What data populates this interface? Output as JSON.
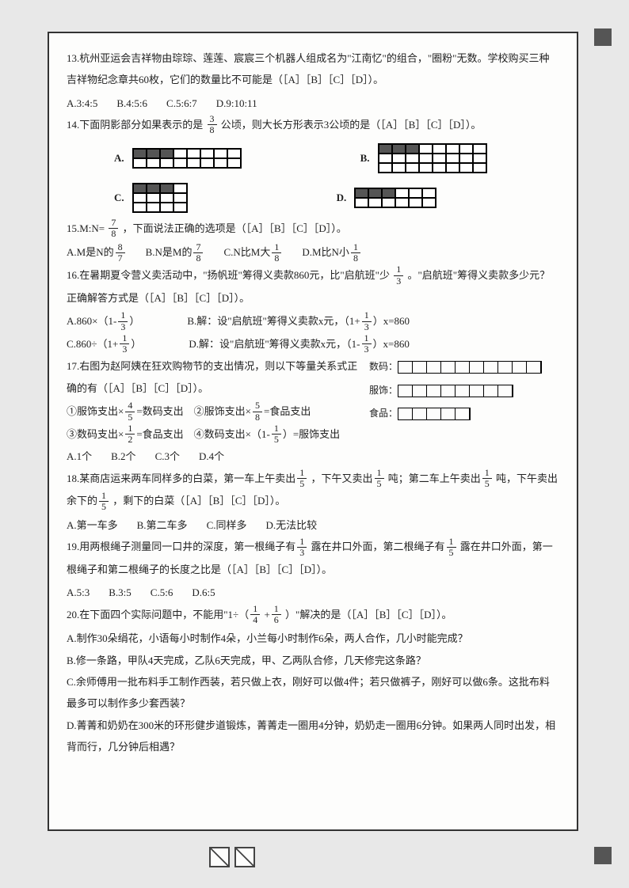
{
  "q13": {
    "text": "13.杭州亚运会吉祥物由琮琮、莲莲、宸宸三个机器人组成名为\"江南忆\"的组合，\"圈粉\"无数。学校购买三种吉祥物纪念章共60枚，它们的数量比不可能是（［A］［B］［C］［D］）。",
    "A": "A.3:4:5",
    "B": "B.4:5:6",
    "C": "C.5:6:7",
    "D": "D.9:10:11"
  },
  "q14": {
    "text_a": "14.下面阴影部分如果表示的是",
    "frac": {
      "n": "3",
      "d": "8"
    },
    "text_b": "公顷，则大长方形表示3公顷的是（［A］［B］［C］［D］）。",
    "grids": {
      "A": {
        "label": "A.",
        "rows": 2,
        "cols": 8,
        "fill": [
          [
            0,
            0
          ],
          [
            0,
            1
          ],
          [
            0,
            2
          ]
        ]
      },
      "B": {
        "label": "B.",
        "rows": 3,
        "cols": 8,
        "fill": [
          [
            0,
            0
          ],
          [
            0,
            1
          ],
          [
            0,
            2
          ]
        ]
      },
      "C": {
        "label": "C.",
        "rows": 3,
        "cols": 4,
        "fill": [
          [
            0,
            0
          ],
          [
            0,
            1
          ],
          [
            0,
            2
          ]
        ]
      },
      "D": {
        "label": "D.",
        "rows": 2,
        "cols": 6,
        "fill": [
          [
            0,
            0
          ],
          [
            0,
            1
          ],
          [
            0,
            2
          ]
        ]
      }
    }
  },
  "q15": {
    "prefix": "15.M:N=",
    "frac": {
      "n": "7",
      "d": "8"
    },
    "suffix": "，下面说法正确的选项是（［A］［B］［C］［D］）。",
    "A_pre": "A.M是N的",
    "A_frac": {
      "n": "8",
      "d": "7"
    },
    "B_pre": "B.N是M的",
    "B_frac": {
      "n": "7",
      "d": "8"
    },
    "C_pre": "C.N比M大",
    "C_frac": {
      "n": "1",
      "d": "8"
    },
    "D_pre": "D.M比N小",
    "D_frac": {
      "n": "1",
      "d": "8"
    }
  },
  "q16": {
    "text_a": "16.在暑期夏令营义卖活动中，\"扬帆班\"筹得义卖款860元，比\"启航班\"少",
    "frac": {
      "n": "1",
      "d": "3"
    },
    "text_b": "。\"启航班\"筹得义卖款多少元？正确解答方式是（［A］［B］［C］［D］）。",
    "A_pre": "A.860×（1-",
    "A_frac": {
      "n": "1",
      "d": "3"
    },
    "A_suf": "）",
    "B_pre": "B.解：设\"启航班\"筹得义卖款x元，（1+",
    "B_frac": {
      "n": "1",
      "d": "3"
    },
    "B_suf": "）x=860",
    "C_pre": "C.860÷（1+",
    "C_frac": {
      "n": "1",
      "d": "3"
    },
    "C_suf": "）",
    "D_pre": "D.解：设\"启航班\"筹得义卖款x元，（1-",
    "D_frac": {
      "n": "1",
      "d": "3"
    },
    "D_suf": "）x=860"
  },
  "q17": {
    "text": "17.右图为赵阿姨在狂欢购物节的支出情况，则以下等量关系式正确的有（［A］［B］［C］［D］）。",
    "s1_pre": "①服饰支出×",
    "s1_frac": {
      "n": "4",
      "d": "5"
    },
    "s1_suf": "=数码支出　②服饰支出×",
    "s1_frac2": {
      "n": "5",
      "d": "8"
    },
    "s1_suf2": "=食品支出",
    "s2_pre": "③数码支出×",
    "s2_frac": {
      "n": "1",
      "d": "2"
    },
    "s2_suf": "=食品支出　④数码支出×（1-",
    "s2_frac2": {
      "n": "1",
      "d": "5"
    },
    "s2_suf2": "）=服饰支出",
    "A": "A.1个",
    "B": "B.2个",
    "C": "C.3个",
    "D": "D.4个",
    "bars": {
      "l1": "数码：",
      "b1": 10,
      "l2": "服饰：",
      "b2": 8,
      "l3": "食品：",
      "b3": 5
    }
  },
  "q18": {
    "text_a": "18.某商店运来两车同样多的白菜，第一车上午卖出",
    "f1": {
      "n": "1",
      "d": "5"
    },
    "text_b": "，下午又卖出",
    "f2": {
      "n": "1",
      "d": "5"
    },
    "text_c": "吨；第二车上午卖出",
    "f3": {
      "n": "1",
      "d": "5"
    },
    "text_d": "吨，下午卖出余下的",
    "f4": {
      "n": "1",
      "d": "5"
    },
    "text_e": "，剩下的白菜（［A］［B］［C］［D］）。",
    "A": "A.第一车多",
    "B": "B.第二车多",
    "C": "C.同样多",
    "D": "D.无法比较"
  },
  "q19": {
    "text_a": "19.用两根绳子测量同一口井的深度，第一根绳子有",
    "f1": {
      "n": "1",
      "d": "3"
    },
    "text_b": "露在井口外面，第二根绳子有",
    "f2": {
      "n": "1",
      "d": "5"
    },
    "text_c": "露在井口外面，第一根绳子和第二根绳子的长度之比是（［A］［B］［C］［D］）。",
    "A": "A.5:3",
    "B": "B.3:5",
    "C": "C.5:6",
    "D": "D.6:5"
  },
  "q20": {
    "text_a": "20.在下面四个实际问题中，不能用\"1÷（",
    "f1": {
      "n": "1",
      "d": "4"
    },
    "mid": "+",
    "f2": {
      "n": "1",
      "d": "6"
    },
    "text_b": "）\"解决的是（［A］［B］［C］［D］）。",
    "A": "A.制作30朵绢花，小语每小时制作4朵，小兰每小时制作6朵，两人合作，几小时能完成？",
    "B": "B.修一条路，甲队4天完成，乙队6天完成，甲、乙两队合修，几天修完这条路？",
    "C": "C.余师傅用一批布料手工制作西装，若只做上衣，刚好可以做4件；若只做裤子，刚好可以做6条。这批布料最多可以制作多少套西装？",
    "D": "D.菁菁和奶奶在300米的环形健步道锻炼，菁菁走一圈用4分钟，奶奶走一圈用6分钟。如果两人同时出发，相背而行，几分钟后相遇？"
  }
}
